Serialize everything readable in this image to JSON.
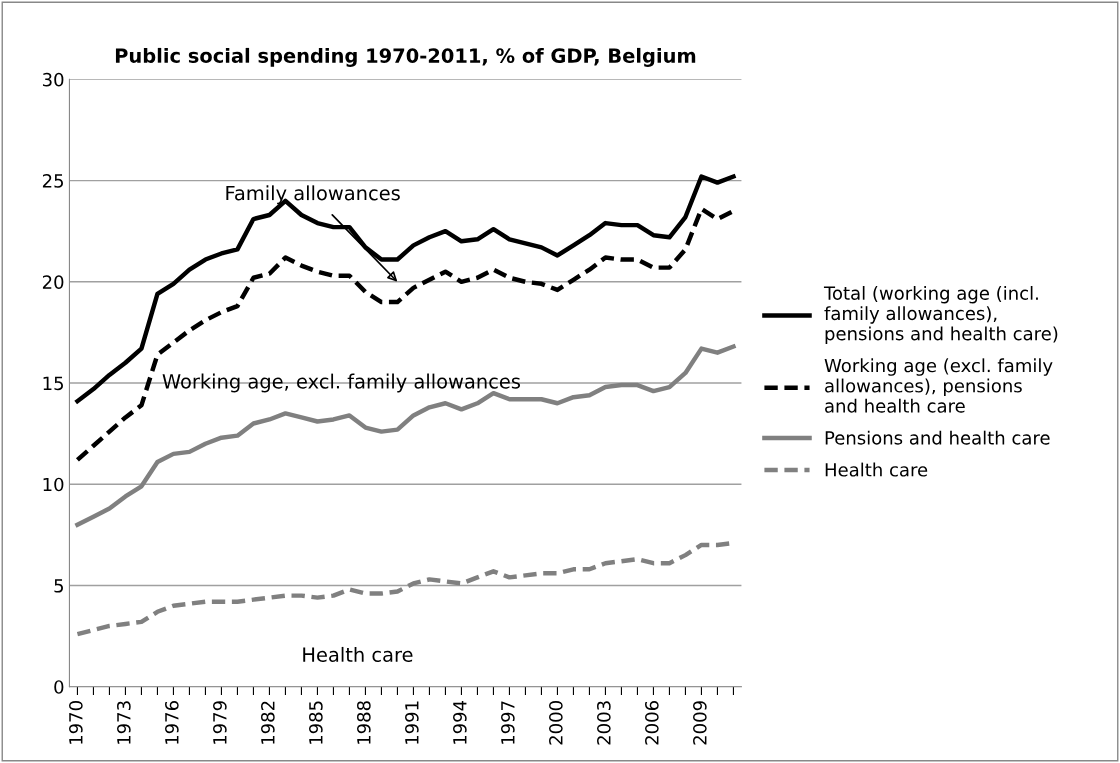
{
  "chart_data": {
    "type": "line",
    "title": "Public social spending 1970-2011, % of GDP, Belgium",
    "categories": [
      "1970",
      null,
      null,
      "1973",
      null,
      null,
      "1976",
      null,
      null,
      "1979",
      null,
      null,
      "1982",
      null,
      null,
      "1985",
      null,
      null,
      "1988",
      null,
      null,
      "1991",
      null,
      null,
      "1994",
      null,
      null,
      "1997",
      null,
      null,
      "2000",
      null,
      null,
      "2003",
      null,
      null,
      "2006",
      null,
      null,
      "2009",
      null,
      null
    ],
    "series": [
      {
        "name": "Total (working age (incl.\nfamily allowances),\npensions and health care)",
        "color": "#000000",
        "line_style": "solid",
        "values": [
          14.1,
          14.7,
          15.4,
          16.0,
          16.7,
          19.4,
          19.9,
          20.6,
          21.1,
          21.4,
          21.6,
          23.1,
          23.3,
          24.0,
          23.3,
          22.9,
          22.7,
          22.7,
          21.7,
          21.1,
          21.1,
          21.8,
          22.2,
          22.5,
          22.0,
          22.1,
          22.6,
          22.1,
          21.9,
          21.7,
          21.3,
          21.8,
          22.3,
          22.9,
          22.8,
          22.8,
          22.3,
          22.2,
          23.2,
          25.2,
          24.9,
          25.2
        ]
      },
      {
        "name": "Working age (excl. family\nallowances), pensions\nand health care",
        "color": "#000000",
        "line_style": "dashed",
        "values": [
          11.2,
          11.9,
          12.6,
          13.3,
          13.9,
          16.4,
          17.0,
          17.6,
          18.1,
          18.5,
          18.8,
          20.2,
          20.4,
          21.2,
          20.8,
          20.5,
          20.3,
          20.3,
          19.5,
          19.0,
          19.0,
          19.7,
          20.1,
          20.5,
          20.0,
          20.2,
          20.6,
          20.2,
          20.0,
          19.9,
          19.6,
          20.1,
          20.6,
          21.2,
          21.1,
          21.1,
          20.7,
          20.7,
          21.6,
          23.6,
          23.1,
          23.5
        ]
      },
      {
        "name": "Pensions and health care",
        "color": "#808080",
        "line_style": "solid",
        "values": [
          8.0,
          8.4,
          8.8,
          9.4,
          9.9,
          11.1,
          11.5,
          11.6,
          12.0,
          12.3,
          12.4,
          13.0,
          13.2,
          13.5,
          13.3,
          13.1,
          13.2,
          13.4,
          12.8,
          12.6,
          12.7,
          13.4,
          13.8,
          14.0,
          13.7,
          14.0,
          14.5,
          14.2,
          14.2,
          14.2,
          14.0,
          14.3,
          14.4,
          14.8,
          14.9,
          14.9,
          14.6,
          14.8,
          15.5,
          16.7,
          16.5,
          16.8
        ]
      },
      {
        "name": "Health care",
        "color": "#808080",
        "line_style": "dashed",
        "values": [
          2.6,
          2.8,
          3.0,
          3.1,
          3.2,
          3.7,
          4.0,
          4.1,
          4.2,
          4.2,
          4.2,
          4.3,
          4.4,
          4.5,
          4.5,
          4.4,
          4.5,
          4.8,
          4.6,
          4.6,
          4.7,
          5.1,
          5.3,
          5.2,
          5.1,
          5.4,
          5.7,
          5.4,
          5.5,
          5.6,
          5.6,
          5.8,
          5.8,
          6.1,
          6.2,
          6.3,
          6.1,
          6.1,
          6.5,
          7.0,
          7.0,
          7.1
        ]
      }
    ],
    "annotations": [
      "Family allowances",
      "Working age, excl. family allowances",
      "Health care"
    ],
    "ylim": [
      0,
      30
    ],
    "yticks": [
      0,
      5,
      10,
      15,
      20,
      25,
      30
    ],
    "grid": "y",
    "legend": "right",
    "marker": "none"
  }
}
